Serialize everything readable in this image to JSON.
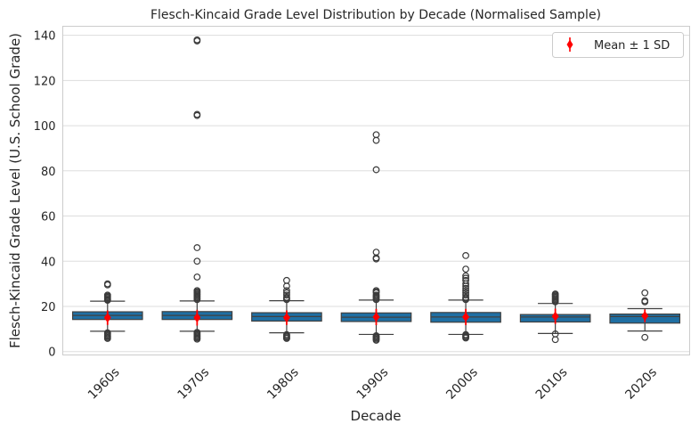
{
  "chart_data": {
    "type": "boxplot",
    "title": "Flesch-Kincaid Grade Level Distribution by Decade (Normalised Sample)",
    "xlabel": "Decade",
    "ylabel": "Flesch-Kincaid Grade Level (U.S. School Grade)",
    "ylim": [
      -1.5,
      144
    ],
    "yticks": [
      0,
      20,
      40,
      60,
      80,
      100,
      120,
      140
    ],
    "grid": true,
    "legend": {
      "label": "Mean ± 1 SD",
      "placement": "top-right"
    },
    "colors": {
      "box": "#1f6fa3",
      "mean": "#ff0000",
      "grid": "#dddddd",
      "axis": "#cccccc"
    },
    "categories": [
      "1960s",
      "1970s",
      "1980s",
      "1990s",
      "2000s",
      "2010s",
      "2020s"
    ],
    "boxes": [
      {
        "q1": 14.2,
        "median": 16.0,
        "q3": 17.6,
        "whisker_low": 9.0,
        "whisker_high": 22.3,
        "mean": 15.0,
        "sd": 3.2,
        "outliers": [
          29.5,
          30.0,
          25.0,
          24.5,
          24.0,
          23.5,
          23.0,
          22.7,
          8.3,
          7.8,
          7.3,
          6.8,
          6.3,
          5.8
        ]
      },
      {
        "q1": 14.2,
        "median": 16.0,
        "q3": 17.7,
        "whisker_low": 9.0,
        "whisker_high": 22.4,
        "mean": 15.0,
        "sd": 3.5,
        "outliers": [
          137.5,
          138.0,
          104.5,
          105.0,
          46.0,
          40.0,
          33.0,
          27.0,
          26.5,
          26.0,
          25.5,
          25.0,
          24.5,
          24.0,
          23.5,
          23.0,
          8.5,
          8.0,
          7.5,
          7.0,
          6.5,
          6.0,
          5.5
        ]
      },
      {
        "q1": 13.5,
        "median": 15.5,
        "q3": 17.2,
        "whisker_low": 8.3,
        "whisker_high": 22.5,
        "mean": 15.0,
        "sd": 3.2,
        "outliers": [
          31.5,
          29.0,
          27.0,
          26.0,
          25.0,
          24.0,
          23.5,
          23.0,
          7.5,
          7.0,
          6.5,
          6.0,
          5.8
        ]
      },
      {
        "q1": 13.3,
        "median": 15.2,
        "q3": 17.1,
        "whisker_low": 7.6,
        "whisker_high": 22.8,
        "mean": 15.3,
        "sd": 3.6,
        "outliers": [
          96.0,
          93.5,
          80.5,
          44.0,
          41.5,
          41.0,
          27.0,
          26.5,
          26.0,
          25.0,
          24.5,
          24.0,
          23.5,
          23.0,
          7.0,
          6.5,
          6.0,
          5.5,
          5.0
        ]
      },
      {
        "q1": 13.0,
        "median": 15.3,
        "q3": 17.3,
        "whisker_low": 7.6,
        "whisker_high": 22.8,
        "mean": 15.3,
        "sd": 3.6,
        "outliers": [
          42.5,
          36.5,
          33.5,
          32.5,
          31.5,
          30.0,
          29.0,
          28.0,
          27.0,
          26.0,
          25.0,
          24.0,
          23.5,
          23.0,
          7.5,
          7.0,
          6.5,
          6.0
        ]
      },
      {
        "q1": 13.1,
        "median": 15.3,
        "q3": 16.4,
        "whisker_low": 8.0,
        "whisker_high": 21.3,
        "mean": 15.6,
        "sd": 3.4,
        "outliers": [
          25.5,
          25.0,
          24.5,
          24.0,
          23.5,
          23.0,
          22.5,
          22.0,
          7.8,
          5.3
        ]
      },
      {
        "q1": 12.6,
        "median": 15.5,
        "q3": 16.6,
        "whisker_low": 9.1,
        "whisker_high": 19.0,
        "mean": 15.8,
        "sd": 2.8,
        "outliers": [
          26.0,
          22.5,
          22.0,
          6.3
        ]
      }
    ]
  }
}
